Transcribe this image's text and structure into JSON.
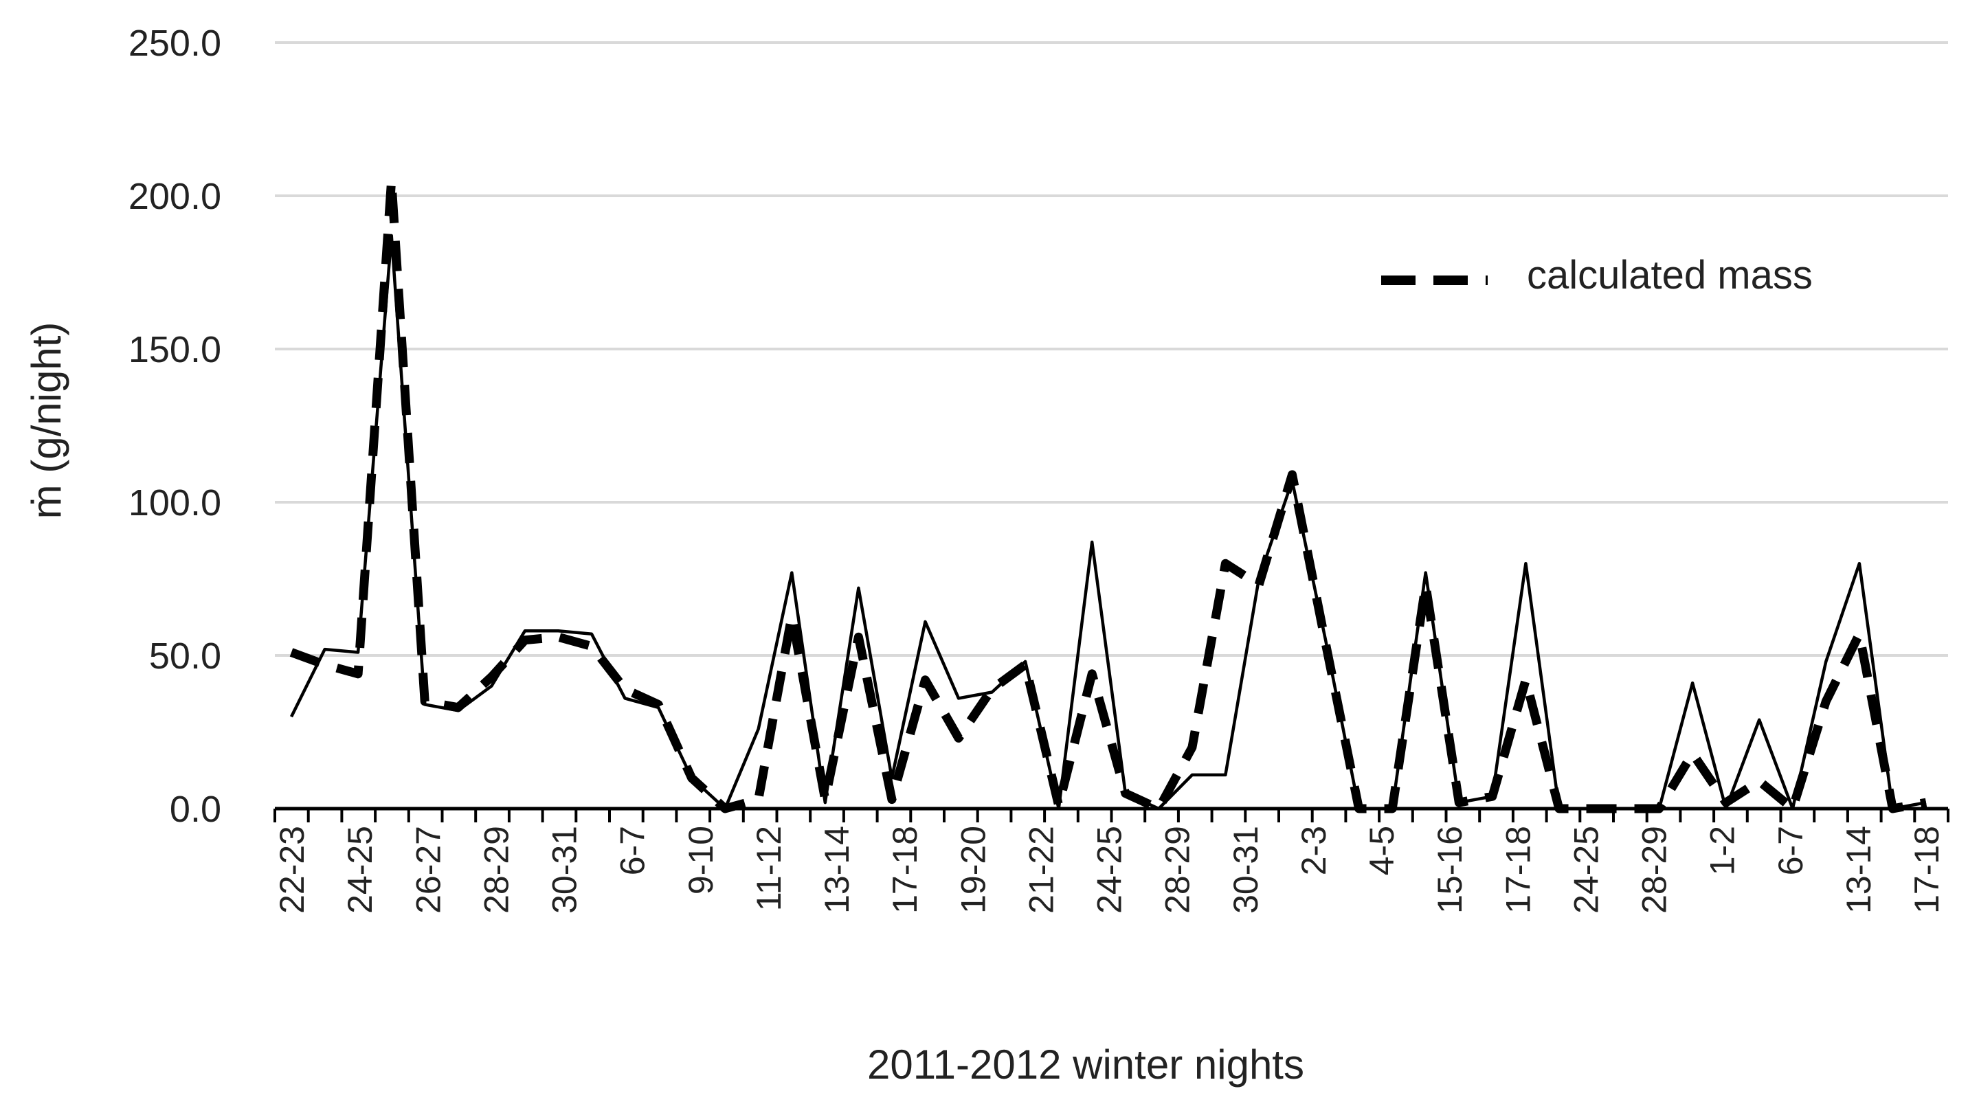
{
  "chart_data": {
    "type": "line",
    "title": "",
    "xlabel": "2011-2012 winter nights",
    "ylabel": "ṁ (g/night)",
    "ylim": [
      0,
      250
    ],
    "yticks": [
      "0.0",
      "50.0",
      "100.0",
      "150.0",
      "200.0",
      "250.0"
    ],
    "grid": true,
    "legend_position": "top-right",
    "categories_labeled": [
      "22-23",
      "24-25",
      "26-27",
      "28-29",
      "30-31",
      "6-7",
      "9-10",
      "11-12",
      "13-14",
      "17-18",
      "19-20",
      "21-22",
      "24-25",
      "28-29",
      "30-31",
      "2-3",
      "4-5",
      "15-16",
      "17-18",
      "24-25",
      "28-29",
      "1-2",
      "6-7",
      "13-14",
      "17-18"
    ],
    "series": [
      {
        "name": "",
        "style": "solid",
        "color": "#000000",
        "values": [
          30,
          52,
          51,
          187,
          34,
          32,
          40,
          58,
          58,
          57,
          36,
          33,
          10,
          0,
          26,
          77,
          2,
          72,
          10,
          61,
          36,
          38,
          48,
          0,
          87,
          5,
          0,
          11,
          11,
          75,
          107,
          55,
          0,
          0,
          77,
          2,
          4,
          80,
          0,
          0,
          0,
          0,
          41,
          0,
          29,
          0,
          48,
          80,
          0,
          2
        ]
      },
      {
        "name": "calculated mass",
        "style": "dashed",
        "color": "#000000",
        "values": [
          51,
          47,
          44,
          205,
          35,
          33,
          43,
          55,
          56,
          53,
          39,
          34,
          10,
          0,
          3,
          63,
          3,
          56,
          3,
          42,
          23,
          39,
          47,
          1,
          44,
          5,
          0,
          20,
          80,
          73,
          109,
          54,
          0,
          0,
          73,
          2,
          4,
          42,
          0,
          0,
          0,
          0,
          18,
          2,
          9,
          0,
          35,
          57,
          0,
          2
        ]
      }
    ]
  }
}
